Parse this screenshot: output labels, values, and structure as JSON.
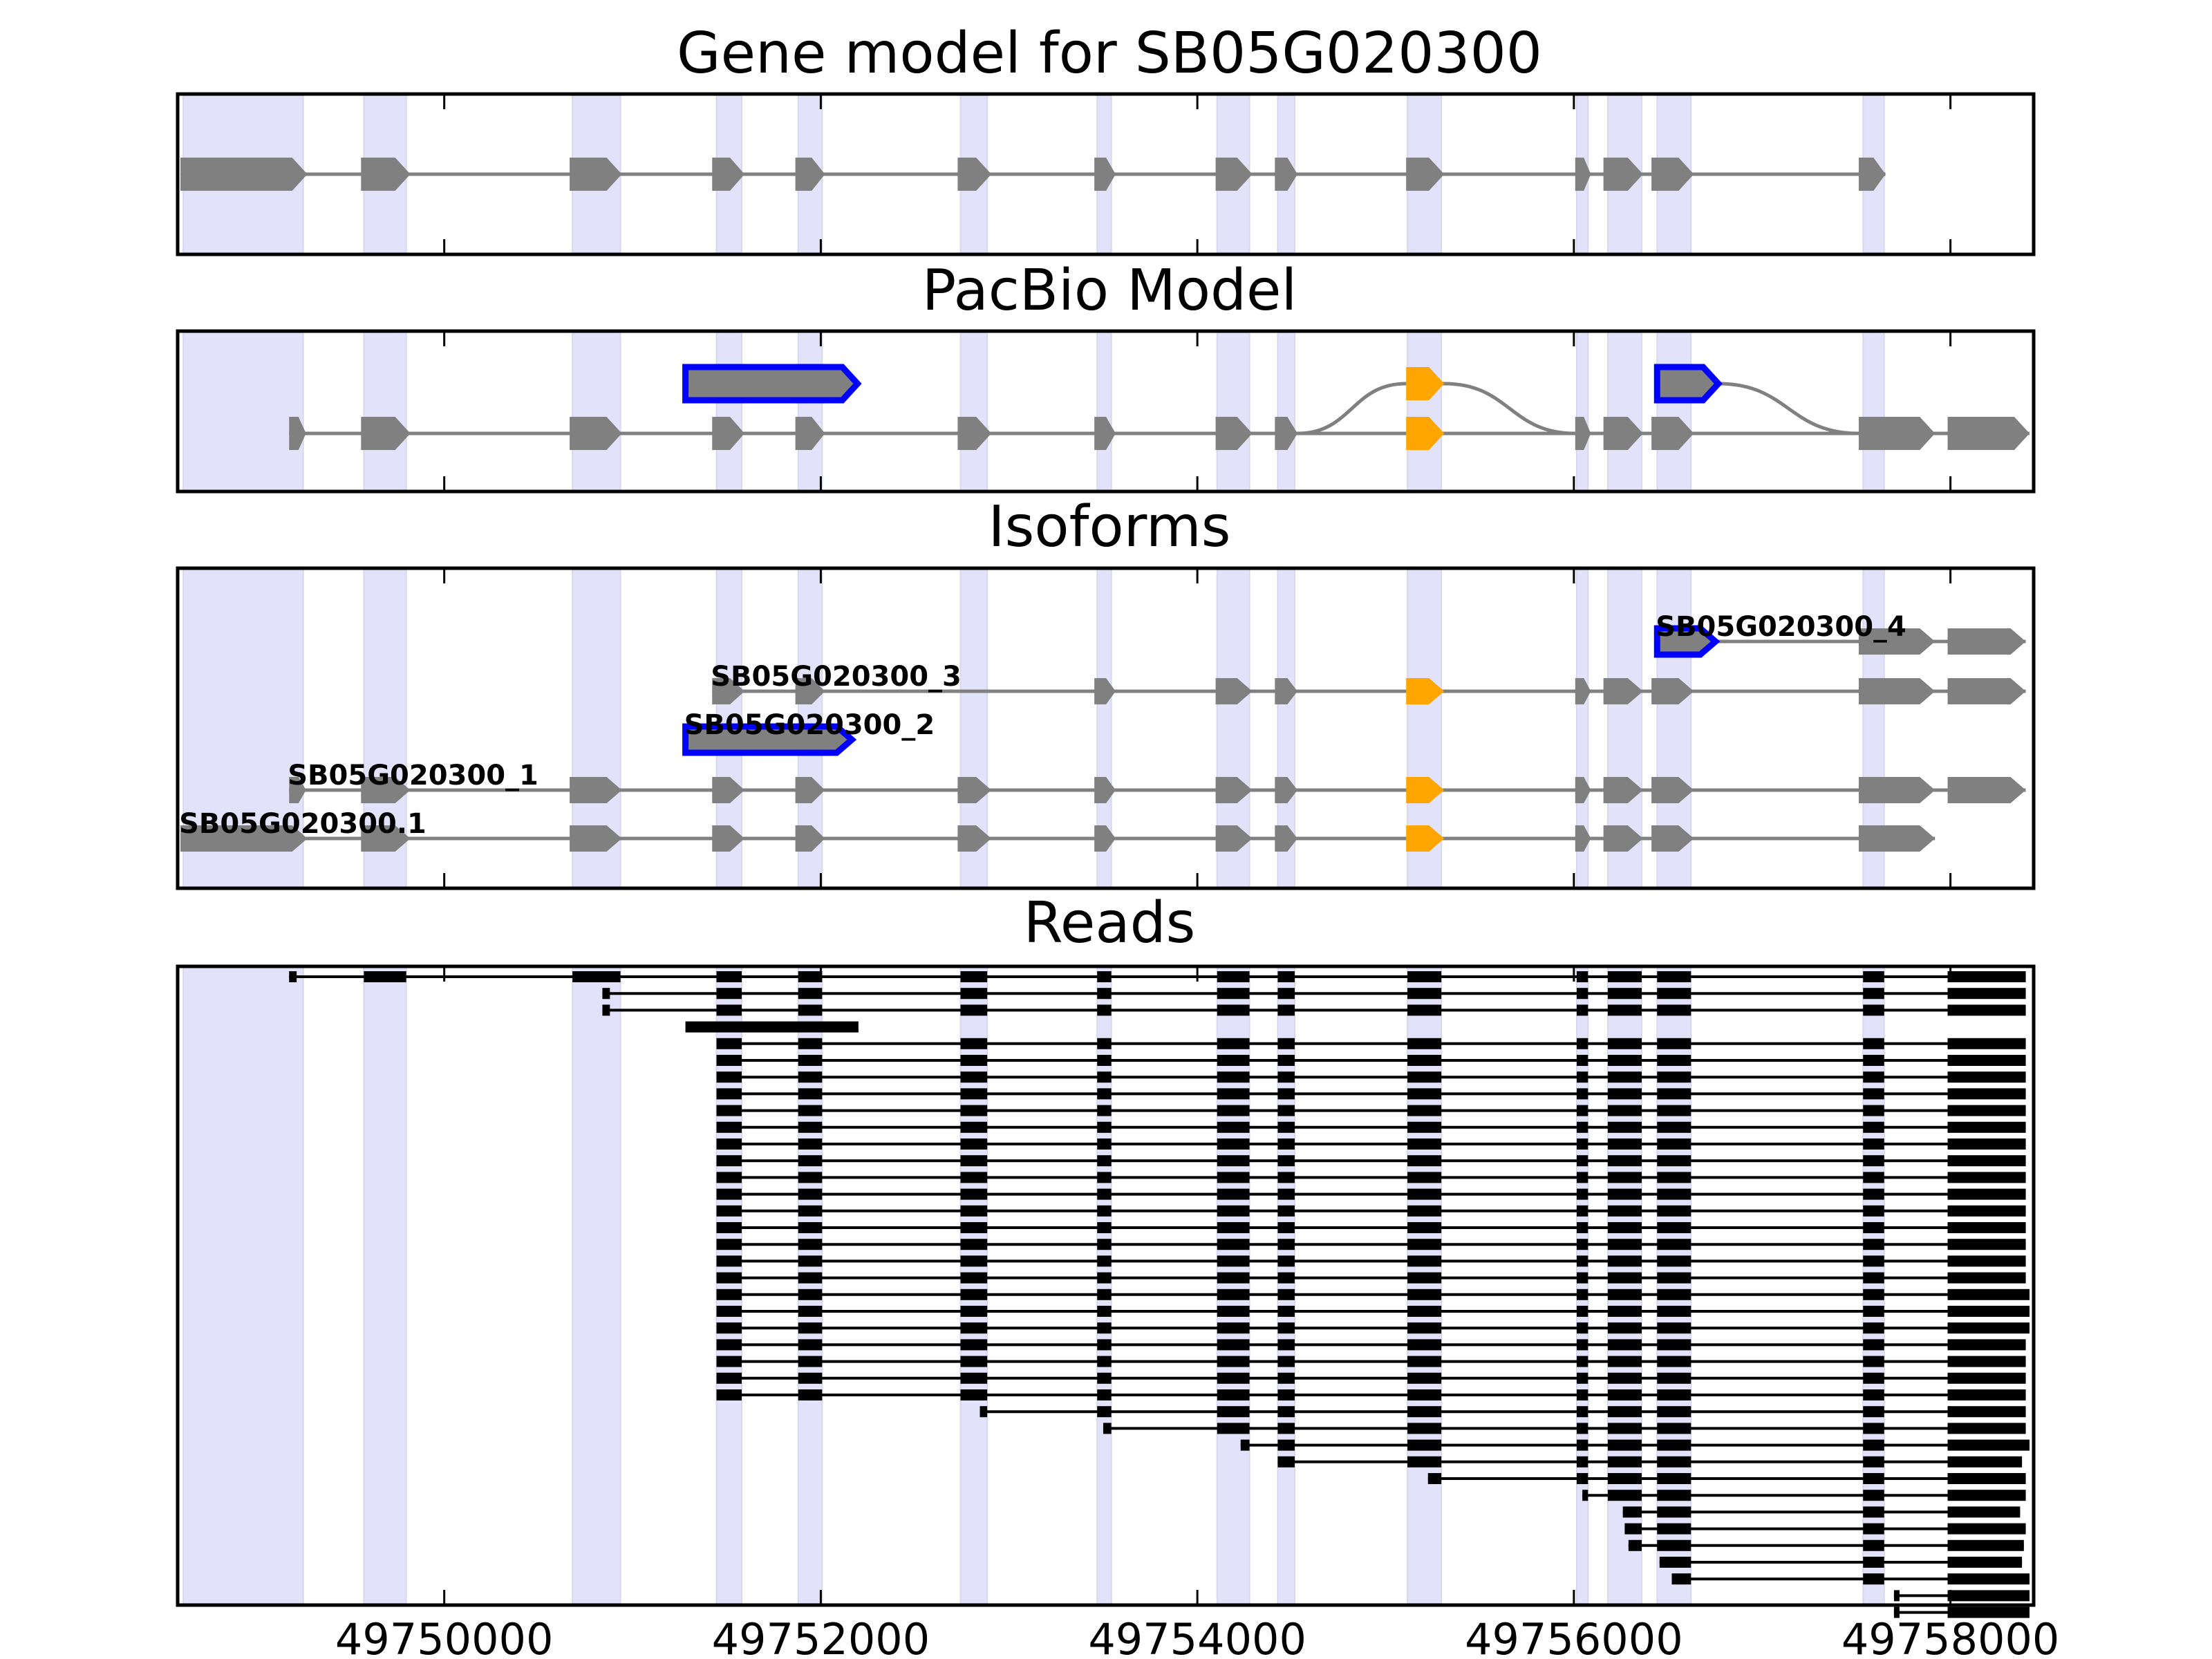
{
  "chart_data": {
    "type": "gene-track",
    "title": "Gene model for SB05G020300",
    "x_axis": {
      "range": [
        49748584,
        49758442
      ],
      "ticks": [
        49750000,
        49752000,
        49754000,
        49756000,
        49758000
      ],
      "tick_labels": [
        "49750000",
        "49752000",
        "49754000",
        "49756000",
        "49758000"
      ]
    },
    "colors": {
      "exon": "#808080",
      "intron": "#808080",
      "alt_exon": "#FFA500",
      "highlight_outline": "#0000FF",
      "band": "#E2E2FA",
      "read": "#000000"
    },
    "exon_bands": [
      [
        49748614,
        49749251
      ],
      [
        49749573,
        49749798
      ],
      [
        49750681,
        49750936
      ],
      [
        49751446,
        49751580
      ],
      [
        49751880,
        49752007
      ],
      [
        49752742,
        49752884
      ],
      [
        49753468,
        49753543
      ],
      [
        49754105,
        49754277
      ],
      [
        49754427,
        49754517
      ],
      [
        49755116,
        49755296
      ],
      [
        49756015,
        49756075
      ],
      [
        49756180,
        49756360
      ],
      [
        49756442,
        49756622
      ],
      [
        49757536,
        49757648
      ]
    ],
    "panels": [
      {
        "name": "gene-model",
        "title": "Gene model for SB05G020300",
        "tracks": [
          {
            "exons": [
              [
                49748599,
                49749273
              ],
              [
                49749558,
                49749820
              ],
              [
                49750666,
                49750943
              ],
              [
                49751423,
                49751595
              ],
              [
                49751865,
                49752022
              ],
              [
                49752727,
                49752906
              ],
              [
                49753453,
                49753566
              ],
              [
                49754097,
                49754292
              ],
              [
                49754412,
                49754532
              ],
              [
                49755109,
                49755311
              ],
              [
                49756007,
                49756090
              ],
              [
                49756157,
                49756367
              ],
              [
                49756412,
                49756637
              ],
              [
                49757513,
                49757655
              ]
            ],
            "alt": [],
            "outlined": [],
            "row": 0
          }
        ]
      },
      {
        "name": "pacbio-model",
        "title": "PacBio Model",
        "tracks": [
          {
            "exons": [
              [
                49749176,
                49749266
              ],
              [
                49749558,
                49749820
              ],
              [
                49750666,
                49750943
              ],
              [
                49751423,
                49751595
              ],
              [
                49751865,
                49752022
              ],
              [
                49752727,
                49752906
              ],
              [
                49753453,
                49753566
              ],
              [
                49754097,
                49754292
              ],
              [
                49754412,
                49754532
              ],
              [
                49755109,
                49755311
              ],
              [
                49756007,
                49756090
              ],
              [
                49756157,
                49756367
              ],
              [
                49756412,
                49756637
              ],
              [
                49757513,
                49757918
              ],
              [
                49757985,
                49758420
              ]
            ],
            "alt": [
              9
            ],
            "outlined": [],
            "row": 0
          },
          {
            "exons": [
              [
                49751281,
                49752195
              ]
            ],
            "alt": [],
            "outlined": [
              0
            ],
            "row": 1
          },
          {
            "exons": [
              [
                49755109,
                49755311
              ]
            ],
            "alt": [
              0
            ],
            "outlined": [],
            "row": 1,
            "splice_from": 49754532,
            "splice_to": 49756007
          },
          {
            "exons": [
              [
                49756442,
                49756767
              ]
            ],
            "alt": [],
            "outlined": [
              0
            ],
            "row": 1,
            "splice_to": 49757513
          }
        ]
      },
      {
        "name": "isoforms",
        "title": "Isoforms",
        "tracks": [
          {
            "label": "SB05G020300.1",
            "exons": [
              [
                49748599,
                49749273
              ],
              [
                49749558,
                49749820
              ],
              [
                49750666,
                49750943
              ],
              [
                49751423,
                49751595
              ],
              [
                49751865,
                49752022
              ],
              [
                49752727,
                49752906
              ],
              [
                49753453,
                49753566
              ],
              [
                49754097,
                49754292
              ],
              [
                49754412,
                49754532
              ],
              [
                49755109,
                49755311
              ],
              [
                49756007,
                49756090
              ],
              [
                49756157,
                49756367
              ],
              [
                49756412,
                49756637
              ],
              [
                49757513,
                49757918
              ]
            ],
            "alt": [
              9
            ],
            "outlined": [],
            "row": 0
          },
          {
            "label": "SB05G020300_1",
            "exons": [
              [
                49749176,
                49749266
              ],
              [
                49749558,
                49749820
              ],
              [
                49750666,
                49750943
              ],
              [
                49751423,
                49751595
              ],
              [
                49751865,
                49752022
              ],
              [
                49752727,
                49752906
              ],
              [
                49753453,
                49753566
              ],
              [
                49754097,
                49754292
              ],
              [
                49754412,
                49754532
              ],
              [
                49755109,
                49755311
              ],
              [
                49756007,
                49756090
              ],
              [
                49756157,
                49756367
              ],
              [
                49756412,
                49756637
              ],
              [
                49757513,
                49757918
              ],
              [
                49757985,
                49758400
              ]
            ],
            "alt": [
              9
            ],
            "outlined": [],
            "row": 1
          },
          {
            "label": "SB05G020300_2",
            "exons": [
              [
                49751281,
                49752165
              ]
            ],
            "alt": [],
            "outlined": [
              0
            ],
            "row": 2
          },
          {
            "label": "SB05G020300_3",
            "exons": [
              [
                49751423,
                49751595
              ],
              [
                49751865,
                49752022
              ],
              [
                49753453,
                49753566
              ],
              [
                49754097,
                49754292
              ],
              [
                49754412,
                49754532
              ],
              [
                49755109,
                49755311
              ],
              [
                49756007,
                49756090
              ],
              [
                49756157,
                49756367
              ],
              [
                49756412,
                49756637
              ],
              [
                49757513,
                49757918
              ],
              [
                49757985,
                49758400
              ]
            ],
            "alt": [
              5
            ],
            "outlined": [],
            "row": 3
          },
          {
            "label": "SB05G020300_4",
            "exons": [
              [
                49756442,
                49756752
              ],
              [
                49757513,
                49757918
              ],
              [
                49757985,
                49758400
              ]
            ],
            "alt": [],
            "outlined": [
              0
            ],
            "row": 4
          }
        ]
      },
      {
        "name": "reads",
        "title": "Reads",
        "reads": [
          {
            "s": 49749176,
            "first": 1,
            "last": 13,
            "e": 49758400
          },
          {
            "s": 49750840,
            "first": 3,
            "last": 13,
            "e": 49758400
          },
          {
            "s": 49750840,
            "first": 3,
            "last": 13,
            "e": 49758400
          },
          {
            "block": [
              49751281,
              49752200
            ]
          },
          {
            "s": 49751446,
            "first": 3,
            "last": 13,
            "e": 49758400
          },
          {
            "s": 49751446,
            "first": 3,
            "last": 13,
            "e": 49758400
          },
          {
            "s": 49751446,
            "first": 3,
            "last": 13,
            "e": 49758400
          },
          {
            "s": 49751446,
            "first": 3,
            "last": 13,
            "e": 49758400
          },
          {
            "s": 49751446,
            "first": 3,
            "last": 13,
            "e": 49758400
          },
          {
            "s": 49751446,
            "first": 3,
            "last": 13,
            "e": 49758400
          },
          {
            "s": 49751446,
            "first": 3,
            "last": 13,
            "e": 49758400
          },
          {
            "s": 49751446,
            "first": 3,
            "last": 13,
            "e": 49758400
          },
          {
            "s": 49751446,
            "first": 3,
            "last": 13,
            "e": 49758400
          },
          {
            "s": 49751446,
            "first": 3,
            "last": 13,
            "e": 49758400
          },
          {
            "s": 49751446,
            "first": 3,
            "last": 13,
            "e": 49758400
          },
          {
            "s": 49751446,
            "first": 3,
            "last": 13,
            "e": 49758400
          },
          {
            "s": 49751446,
            "first": 3,
            "last": 13,
            "e": 49758400
          },
          {
            "s": 49751446,
            "first": 3,
            "last": 13,
            "e": 49758400
          },
          {
            "s": 49751446,
            "first": 3,
            "last": 13,
            "e": 49758400
          },
          {
            "s": 49751446,
            "first": 3,
            "last": 13,
            "e": 49758420
          },
          {
            "s": 49751446,
            "first": 3,
            "last": 13,
            "e": 49758420
          },
          {
            "s": 49751446,
            "first": 3,
            "last": 13,
            "e": 49758420
          },
          {
            "s": 49751446,
            "first": 3,
            "last": 13,
            "e": 49758400
          },
          {
            "s": 49751446,
            "first": 3,
            "last": 13,
            "e": 49758400
          },
          {
            "s": 49751446,
            "first": 3,
            "last": 13,
            "e": 49758400
          },
          {
            "s": 49751446,
            "first": 3,
            "last": 13,
            "e": 49758400
          },
          {
            "s": 49752845,
            "first": 5,
            "last": 13,
            "e": 49758400
          },
          {
            "s": 49753500,
            "first": 6,
            "last": 13,
            "e": 49758400
          },
          {
            "s": 49754230,
            "first": 7,
            "last": 13,
            "e": 49758420
          },
          {
            "s": 49754427,
            "first": 8,
            "last": 13,
            "e": 49758380
          },
          {
            "s": 49755225,
            "first": 9,
            "last": 13,
            "e": 49758400
          },
          {
            "s": 49756045,
            "first": 10,
            "last": 13,
            "e": 49758400
          },
          {
            "s": 49756260,
            "first": 11,
            "last": 13,
            "e": 49758370
          },
          {
            "s": 49756270,
            "first": 11,
            "last": 13,
            "e": 49758400
          },
          {
            "s": 49756290,
            "first": 11,
            "last": 13,
            "e": 49758390
          },
          {
            "s": 49756455,
            "first": 12,
            "last": 13,
            "e": 49758380
          },
          {
            "s": 49756520,
            "first": 12,
            "last": 13,
            "e": 49758420
          },
          {
            "s": 49757700,
            "first": 13,
            "last": 13,
            "e": 49758420
          },
          {
            "s": 49757700,
            "first": 13,
            "last": 13,
            "e": 49758420
          }
        ]
      }
    ]
  }
}
